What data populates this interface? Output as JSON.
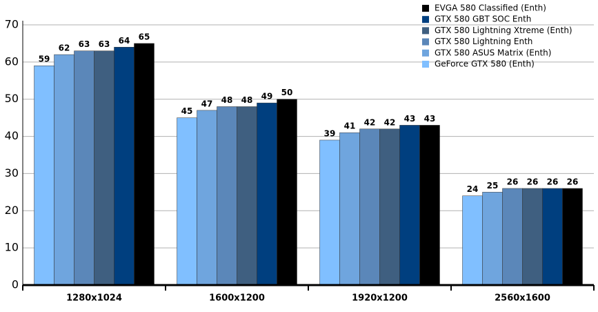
{
  "chart_data": {
    "type": "bar",
    "categories": [
      "1280x1024",
      "1600x1200",
      "1920x1200",
      "2560x1600"
    ],
    "series": [
      {
        "name": "GeForce GTX 580 (Enth)",
        "color": "#80bfff",
        "values": [
          59,
          45,
          39,
          24
        ]
      },
      {
        "name": "GTX 580 ASUS Matrix (Enth)",
        "color": "#6fa5de",
        "values": [
          62,
          47,
          41,
          25
        ]
      },
      {
        "name": "GTX 580 Lightning Enth",
        "color": "#5b87b9",
        "values": [
          63,
          48,
          42,
          26
        ]
      },
      {
        "name": "GTX 580 Lightning Xtreme (Enth)",
        "color": "#3f5f80",
        "values": [
          63,
          48,
          42,
          26
        ]
      },
      {
        "name": "GTX 580 GBT SOC Enth",
        "color": "#003f7f",
        "values": [
          64,
          49,
          43,
          26
        ]
      },
      {
        "name": "EVGA 580 Classified (Enth)",
        "color": "#000000",
        "values": [
          65,
          50,
          43,
          26
        ]
      }
    ],
    "ylim": [
      0,
      70
    ],
    "yticks": [
      0,
      10,
      20,
      30,
      40,
      50,
      60,
      70
    ],
    "grid": true,
    "legend": "top-right"
  }
}
